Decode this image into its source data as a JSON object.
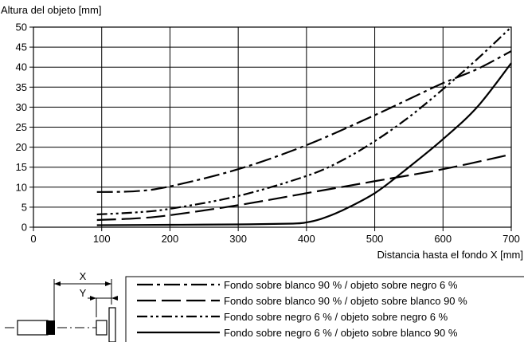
{
  "chart_data": {
    "type": "line",
    "ylabel": "Altura del objeto [mm]",
    "xlabel": "Distancia hasta el fondo X [mm]",
    "xlim": [
      0,
      700
    ],
    "ylim": [
      0,
      50
    ],
    "x_ticks": [
      0,
      100,
      200,
      300,
      400,
      500,
      600,
      700
    ],
    "y_ticks": [
      0,
      5,
      10,
      15,
      20,
      25,
      30,
      35,
      40,
      45,
      50
    ],
    "grid": true,
    "legend_position": "bottom-right",
    "series": [
      {
        "name": "Fondo sobre blanco 90 % / objeto sobre negro 6 %",
        "dash": "dash-dot",
        "x": [
          93,
          150,
          200,
          300,
          400,
          500,
          550,
          600,
          650,
          700
        ],
        "y": [
          8.8,
          9.0,
          10.2,
          14.5,
          20.5,
          28.0,
          32.0,
          36.0,
          39.5,
          44.0
        ]
      },
      {
        "name": "Fondo sobre blanco 90 % / objeto sobre blanco 90 %",
        "dash": "long-dash",
        "x": [
          93,
          150,
          200,
          300,
          400,
          500,
          600,
          700
        ],
        "y": [
          1.8,
          2.2,
          3.0,
          5.5,
          8.5,
          11.5,
          14.5,
          18.2
        ]
      },
      {
        "name": "Fondo sobre negro 6 % / objeto sobre negro 6 %",
        "dash": "dash-dot-dot",
        "x": [
          93,
          150,
          200,
          300,
          400,
          450,
          500,
          550,
          600,
          650,
          700
        ],
        "y": [
          3.2,
          3.7,
          4.6,
          7.8,
          12.8,
          16.5,
          21.5,
          27.5,
          34.5,
          42.0,
          50.0
        ]
      },
      {
        "name": "Fondo sobre negro 6 % / objeto sobre blanco 90 %",
        "dash": "solid",
        "x": [
          93,
          200,
          300,
          380,
          400,
          420,
          450,
          500,
          550,
          600,
          650,
          700
        ],
        "y": [
          0.5,
          0.6,
          0.7,
          0.9,
          1.2,
          2.0,
          4.0,
          8.5,
          15.0,
          22.0,
          30.0,
          41.0
        ]
      }
    ]
  },
  "diagram": {
    "x_label": "X",
    "y_label": "Y"
  }
}
